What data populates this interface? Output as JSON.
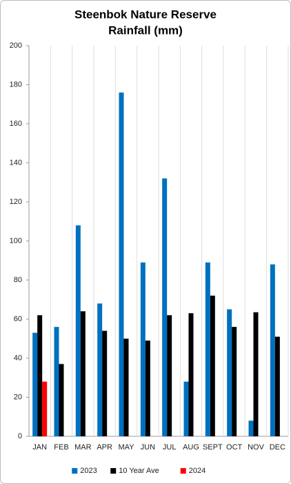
{
  "chart_data": {
    "type": "bar",
    "title": [
      "Steenbok Nature Reserve",
      "Rainfall (mm)"
    ],
    "categories": [
      "JAN",
      "FEB",
      "MAR",
      "APR",
      "MAY",
      "JUN",
      "JUL",
      "AUG",
      "SEPT",
      "OCT",
      "NOV",
      "DEC"
    ],
    "series": [
      {
        "name": "2023",
        "color": "#0070c0",
        "values": [
          53,
          56,
          108,
          68,
          176,
          89,
          132,
          28,
          89,
          65,
          8,
          88
        ]
      },
      {
        "name": "10 Year Ave",
        "color": "#000000",
        "values": [
          62,
          37,
          64,
          54,
          50,
          49,
          62,
          63,
          72,
          56,
          63.5,
          51
        ]
      },
      {
        "name": "2024",
        "color": "#ff0000",
        "values": [
          28,
          null,
          null,
          null,
          null,
          null,
          null,
          null,
          null,
          null,
          null,
          null
        ]
      }
    ],
    "ylim": [
      0,
      200
    ],
    "yticks": [
      0,
      20,
      40,
      60,
      80,
      100,
      120,
      140,
      160,
      180,
      200
    ],
    "legend": "bottom"
  }
}
